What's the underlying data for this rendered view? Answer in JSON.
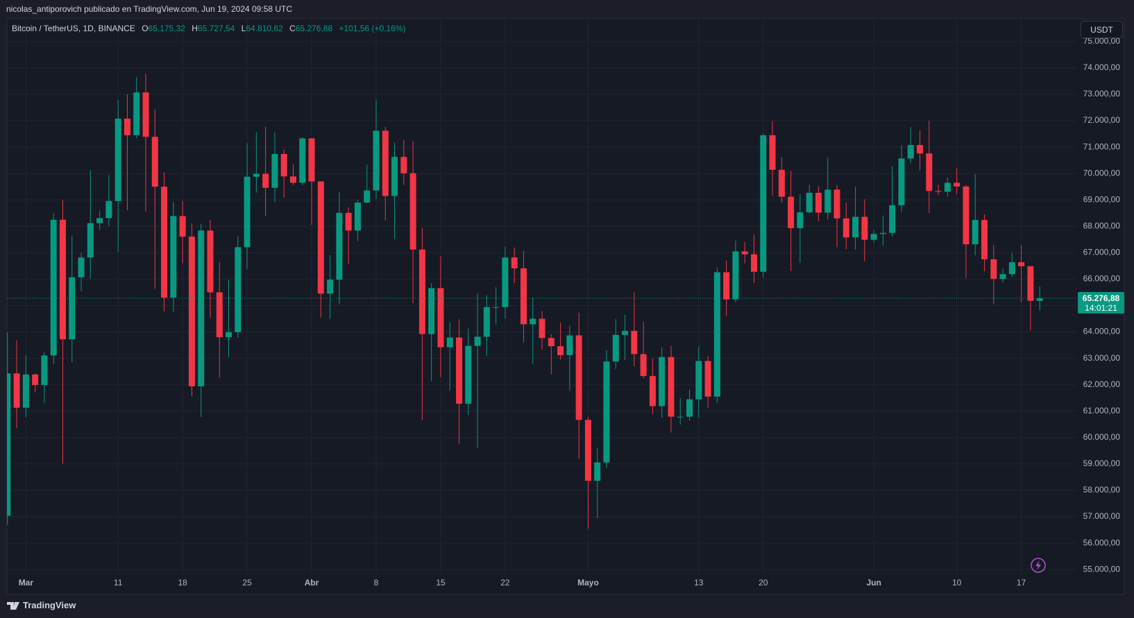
{
  "header": {
    "publisher": "nicolas_antiporovich publicado en TradingView.com, Jun 19, 2024 09:58 UTC"
  },
  "chart_data": {
    "type": "candlestick",
    "symbol": "Bitcoin / TetherUS, 1D, BINANCE",
    "ohlc_legend": [
      {
        "key": "O",
        "value": "65.175,32"
      },
      {
        "key": "H",
        "value": "65.727,54"
      },
      {
        "key": "L",
        "value": "64.810,62"
      },
      {
        "key": "C",
        "value": "65.276,88"
      }
    ],
    "change": "+101,56 (+0,16%)",
    "currency": "USDT",
    "categories": [
      null,
      null,
      "Mar",
      null,
      null,
      null,
      null,
      null,
      null,
      null,
      null,
      null,
      "11",
      null,
      null,
      null,
      null,
      null,
      null,
      "18",
      null,
      null,
      null,
      null,
      null,
      null,
      "25",
      null,
      null,
      null,
      null,
      null,
      null,
      "Abr",
      null,
      null,
      null,
      null,
      null,
      null,
      "8",
      null,
      null,
      null,
      null,
      null,
      null,
      "15",
      null,
      null,
      null,
      null,
      null,
      null,
      "22",
      null,
      null,
      null,
      null,
      null,
      null,
      null,
      null,
      "Mayo",
      null,
      null,
      null,
      null,
      null,
      null,
      null,
      null,
      null,
      null,
      null,
      "13",
      null,
      null,
      null,
      null,
      null,
      null,
      "20",
      null,
      null,
      null,
      null,
      null,
      null,
      null,
      null,
      null,
      null,
      null,
      "Jun",
      null,
      null,
      null,
      null,
      null,
      null,
      null,
      null,
      "10",
      null,
      null,
      null,
      null,
      null,
      null,
      "17",
      null,
      null
    ],
    "open": [
      57040,
      62430,
      61130,
      62390,
      61990,
      63110,
      68250,
      63720,
      66070,
      66820,
      68120,
      68310,
      68960,
      72080,
      71450,
      73070,
      71390,
      69500,
      65300,
      68390,
      67610,
      61940,
      67840,
      65500,
      63800,
      63990,
      67210,
      69880,
      69990,
      69460,
      70740,
      69890,
      69650,
      71330,
      69700,
      65450,
      65980,
      68510,
      67840,
      68900,
      69360,
      71620,
      69150,
      70630,
      70010,
      67120,
      63920,
      65660,
      63420,
      63790,
      61280,
      63470,
      63820,
      64940,
      64940,
      66820,
      66410,
      64290,
      64500,
      63770,
      63460,
      63120,
      63870,
      60670,
      58360,
      59060,
      62880,
      63890,
      64040,
      63160,
      62330,
      61190,
      63050,
      60790,
      60790,
      61450,
      62900,
      61550,
      66260,
      65230,
      67050,
      66940,
      66280,
      71450,
      70140,
      69120,
      67930,
      68530,
      69270,
      68520,
      69390,
      68300,
      67580,
      68360,
      67490,
      67710,
      67750,
      68800,
      70570,
      71080,
      70760,
      69340,
      69310,
      69650,
      69510,
      67320,
      68240,
      66750,
      66010,
      66190,
      66640,
      66490,
      65175.32
    ],
    "high": [
      63980,
      63680,
      63110,
      62430,
      63230,
      68500,
      69000,
      67640,
      67000,
      70140,
      68590,
      69940,
      72800,
      73000,
      73650,
      73780,
      72420,
      70040,
      68920,
      68960,
      68120,
      68100,
      68240,
      66650,
      65980,
      67620,
      71150,
      71560,
      71770,
      71550,
      70910,
      70360,
      71370,
      71340,
      69700,
      66910,
      69290,
      68730,
      69000,
      70330,
      72800,
      71760,
      71170,
      71280,
      71230,
      67930,
      65840,
      66870,
      64370,
      64480,
      64130,
      65450,
      65390,
      65700,
      67230,
      67200,
      67070,
      65290,
      64790,
      63920,
      64360,
      64230,
      64730,
      60780,
      59600,
      63320,
      64490,
      64650,
      65500,
      64390,
      62990,
      63420,
      63470,
      61490,
      61820,
      63450,
      63100,
      66440,
      66700,
      67460,
      67400,
      67700,
      71520,
      71980,
      70630,
      70090,
      69220,
      69570,
      69520,
      70610,
      69560,
      68910,
      69500,
      69020,
      67860,
      68410,
      70280,
      71060,
      71760,
      71630,
      72000,
      69580,
      69860,
      70200,
      69560,
      69980,
      68450,
      67300,
      66400,
      66990,
      67290,
      66490,
      65727.54
    ],
    "low": [
      56690,
      60360,
      60780,
      61710,
      61320,
      62790,
      59010,
      62850,
      65540,
      66020,
      67860,
      68010,
      67030,
      68610,
      71330,
      68560,
      65630,
      64780,
      64760,
      66600,
      61560,
      60780,
      64530,
      62260,
      63040,
      63790,
      66390,
      69280,
      68380,
      68920,
      69080,
      69560,
      69560,
      68060,
      64550,
      64490,
      65060,
      66560,
      67440,
      68870,
      69040,
      68210,
      67520,
      69570,
      65090,
      60660,
      62130,
      62280,
      61770,
      59770,
      60850,
      59600,
      63090,
      64280,
      64500,
      65850,
      63600,
      62790,
      63330,
      62390,
      62960,
      61770,
      59190,
      56550,
      56940,
      58840,
      62600,
      62940,
      62700,
      62250,
      60890,
      60750,
      60190,
      60490,
      60630,
      60750,
      61130,
      61320,
      64600,
      65120,
      66600,
      65860,
      66060,
      69160,
      68890,
      66310,
      66620,
      68480,
      68200,
      68260,
      67210,
      67130,
      67120,
      66670,
      67390,
      67260,
      67610,
      68560,
      70390,
      70120,
      68500,
      69180,
      69130,
      69220,
      66050,
      66900,
      66300,
      65060,
      65870,
      66080,
      65130,
      64060,
      64810.62
    ],
    "close": [
      62430,
      61130,
      62390,
      61990,
      63110,
      68250,
      63720,
      66070,
      66820,
      68120,
      68310,
      68960,
      72080,
      71450,
      73070,
      71390,
      69500,
      65300,
      68390,
      67610,
      61940,
      67840,
      65500,
      63800,
      63990,
      67210,
      69880,
      69990,
      69460,
      70740,
      69890,
      69650,
      71330,
      69700,
      65450,
      65980,
      68510,
      67840,
      68900,
      69360,
      71620,
      69150,
      70630,
      70010,
      67120,
      63920,
      65660,
      63420,
      63790,
      61280,
      63470,
      63820,
      64940,
      64940,
      66820,
      66410,
      64290,
      64500,
      63770,
      63460,
      63120,
      63870,
      60670,
      58360,
      59060,
      62880,
      63890,
      64040,
      63160,
      62330,
      61190,
      63050,
      60790,
      60790,
      61450,
      62900,
      61550,
      66260,
      65230,
      67050,
      66940,
      66280,
      71450,
      70140,
      69120,
      67930,
      68530,
      69270,
      68520,
      69390,
      68300,
      67580,
      68360,
      67490,
      67710,
      67750,
      68800,
      70570,
      71080,
      70760,
      69340,
      69310,
      69650,
      69510,
      67320,
      68240,
      66750,
      66010,
      66190,
      66640,
      66490,
      65180,
      65276.88
    ],
    "up_color": "#089981",
    "down_color": "#f23645",
    "ylim": [
      54810,
      75860
    ],
    "yticks": [
      {
        "value": 55000,
        "label": "55.000,00"
      },
      {
        "value": 56000,
        "label": "56.000,00"
      },
      {
        "value": 57000,
        "label": "57.000,00"
      },
      {
        "value": 58000,
        "label": "58.000,00"
      },
      {
        "value": 59000,
        "label": "59.000,00"
      },
      {
        "value": 60000,
        "label": "60.000,00"
      },
      {
        "value": 61000,
        "label": "61.000,00"
      },
      {
        "value": 62000,
        "label": "62.000,00"
      },
      {
        "value": 63000,
        "label": "63.000,00"
      },
      {
        "value": 64000,
        "label": "64.000,00"
      },
      {
        "value": 65000,
        "label": "65.000,00"
      },
      {
        "value": 66000,
        "label": "66.000,00"
      },
      {
        "value": 67000,
        "label": "67.000,00"
      },
      {
        "value": 68000,
        "label": "68.000,00"
      },
      {
        "value": 69000,
        "label": "69.000,00"
      },
      {
        "value": 70000,
        "label": "70.000,00"
      },
      {
        "value": 71000,
        "label": "71.000,00"
      },
      {
        "value": 72000,
        "label": "72.000,00"
      },
      {
        "value": 73000,
        "label": "73.000,00"
      },
      {
        "value": 74000,
        "label": "74.000,00"
      },
      {
        "value": 75000,
        "label": "75.000,00"
      }
    ],
    "grid": true,
    "last_price": {
      "label": "65.276,88",
      "countdown": "14:01:21"
    }
  },
  "footer": {
    "brand": "TradingView"
  }
}
